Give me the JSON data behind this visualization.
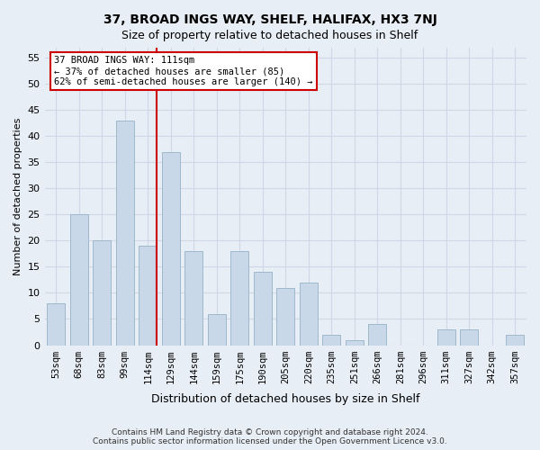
{
  "title_line1": "37, BROAD INGS WAY, SHELF, HALIFAX, HX3 7NJ",
  "title_line2": "Size of property relative to detached houses in Shelf",
  "xlabel": "Distribution of detached houses by size in Shelf",
  "ylabel": "Number of detached properties",
  "categories": [
    "53sqm",
    "68sqm",
    "83sqm",
    "99sqm",
    "114sqm",
    "129sqm",
    "144sqm",
    "159sqm",
    "175sqm",
    "190sqm",
    "205sqm",
    "220sqm",
    "235sqm",
    "251sqm",
    "266sqm",
    "281sqm",
    "296sqm",
    "311sqm",
    "327sqm",
    "342sqm",
    "357sqm"
  ],
  "values": [
    8,
    25,
    20,
    43,
    19,
    37,
    18,
    6,
    18,
    14,
    11,
    12,
    2,
    1,
    4,
    0,
    0,
    3,
    3,
    0,
    2
  ],
  "bar_color": "#c8d8e8",
  "bar_edge_color": "#a0b8cc",
  "grid_color": "#d0d8e8",
  "background_color": "#e8eef5",
  "vline_x_index": 4,
  "vline_color": "#cc0000",
  "annotation_text": "37 BROAD INGS WAY: 111sqm\n← 37% of detached houses are smaller (85)\n62% of semi-detached houses are larger (140) →",
  "annotation_box_color": "#ffffff",
  "annotation_box_edge_color": "#cc0000",
  "ylim": [
    0,
    57
  ],
  "yticks": [
    0,
    5,
    10,
    15,
    20,
    25,
    30,
    35,
    40,
    45,
    50,
    55
  ],
  "footnote": "Contains HM Land Registry data © Crown copyright and database right 2024.\nContains public sector information licensed under the Open Government Licence v3.0."
}
